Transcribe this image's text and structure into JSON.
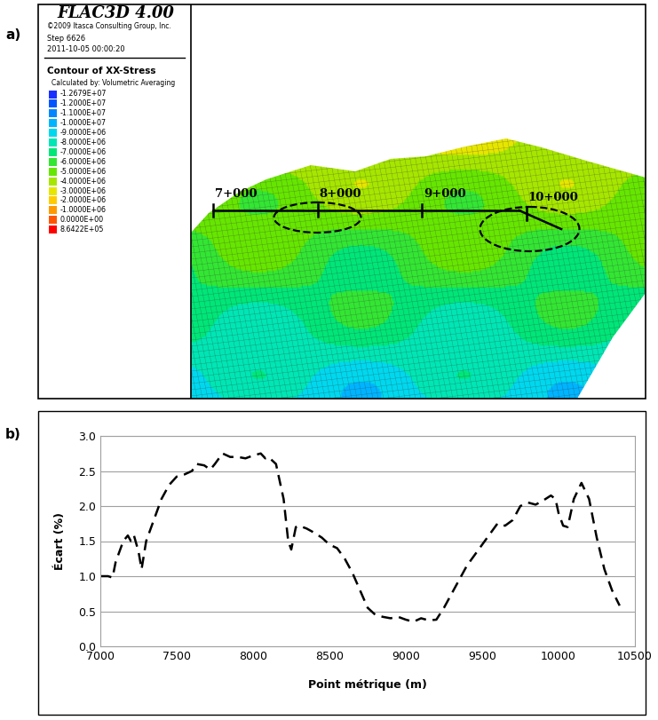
{
  "panel_labels": [
    "a)",
    "b)"
  ],
  "image_panel": {
    "header": {
      "title": "FLAC3D 4.00",
      "copyright": "©2009 Itasca Consulting Group, Inc.",
      "step": "Step 6626",
      "date": "2011-10-05 00:00:20"
    },
    "legend": {
      "title": "Contour of XX-Stress",
      "subtitle": "Calculated by: Volumetric Averaging",
      "levels": [
        {
          "value": -12679000,
          "label": "-1.2679E+07"
        },
        {
          "value": -12000000,
          "label": "-1.2000E+07"
        },
        {
          "value": -11000000,
          "label": "-1.1000E+07"
        },
        {
          "value": -10000000,
          "label": "-1.0000E+07"
        },
        {
          "value": -9000000,
          "label": "-9.0000E+06"
        },
        {
          "value": -8000000,
          "label": "-8.0000E+06"
        },
        {
          "value": -7000000,
          "label": "-7.0000E+06"
        },
        {
          "value": -6000000,
          "label": "-6.0000E+06"
        },
        {
          "value": -5000000,
          "label": "-5.0000E+06"
        },
        {
          "value": -4000000,
          "label": "-4.0000E+06"
        },
        {
          "value": -3000000,
          "label": "-3.0000E+06"
        },
        {
          "value": -2000000,
          "label": "-2.0000E+06"
        },
        {
          "value": -1000000,
          "label": "-1.0000E+06"
        },
        {
          "value": 0,
          "label": "0.0000E+00"
        },
        {
          "value": 864220,
          "label": "8.6422E+05"
        }
      ],
      "colors": [
        "#1a2fff",
        "#0055ff",
        "#0087ff",
        "#00b4ff",
        "#00d8ee",
        "#00e6b4",
        "#00e678",
        "#33e633",
        "#66e600",
        "#a6e600",
        "#e6e600",
        "#ffcc00",
        "#ff9900",
        "#ff5500",
        "#ff0000"
      ]
    },
    "stations": [
      {
        "value": 7000,
        "label": "7+000"
      },
      {
        "value": 8000,
        "label": "8+000"
      },
      {
        "value": 9000,
        "label": "9+000"
      },
      {
        "value": 10000,
        "label": "10+000"
      }
    ]
  },
  "chart_data": {
    "type": "line",
    "xlabel": "Point métrique (m)",
    "ylabel": "Écart (%)",
    "x": [
      7000,
      7050,
      7080,
      7100,
      7150,
      7180,
      7200,
      7220,
      7250,
      7270,
      7300,
      7350,
      7400,
      7450,
      7500,
      7550,
      7600,
      7630,
      7680,
      7720,
      7750,
      7800,
      7850,
      7900,
      7950,
      8000,
      8050,
      8080,
      8100,
      8150,
      8200,
      8230,
      8250,
      8280,
      8300,
      8350,
      8400,
      8450,
      8500,
      8550,
      8600,
      8650,
      8700,
      8750,
      8800,
      8850,
      8900,
      8950,
      9000,
      9050,
      9100,
      9150,
      9200,
      9250,
      9300,
      9350,
      9400,
      9450,
      9500,
      9550,
      9600,
      9650,
      9700,
      9750,
      9800,
      9850,
      9900,
      9950,
      9980,
      10000,
      10030,
      10060,
      10100,
      10150,
      10200,
      10250,
      10300,
      10350,
      10400
    ],
    "values": [
      1.0,
      1.0,
      0.98,
      1.2,
      1.5,
      1.58,
      1.5,
      1.58,
      1.35,
      1.1,
      1.5,
      1.8,
      2.1,
      2.3,
      2.42,
      2.45,
      2.5,
      2.6,
      2.58,
      2.52,
      2.6,
      2.75,
      2.7,
      2.7,
      2.68,
      2.72,
      2.75,
      2.68,
      2.7,
      2.6,
      2.1,
      1.5,
      1.38,
      1.7,
      1.72,
      1.68,
      1.62,
      1.55,
      1.45,
      1.4,
      1.25,
      1.05,
      0.8,
      0.55,
      0.45,
      0.42,
      0.4,
      0.42,
      0.38,
      0.35,
      0.4,
      0.37,
      0.38,
      0.55,
      0.75,
      0.95,
      1.15,
      1.3,
      1.45,
      1.6,
      1.75,
      1.72,
      1.8,
      2.0,
      2.05,
      2.02,
      2.08,
      2.15,
      2.1,
      1.9,
      1.72,
      1.7,
      2.1,
      2.33,
      2.1,
      1.55,
      1.1,
      0.8,
      0.58
    ],
    "color": "#000000",
    "line_style": "dashed",
    "marker": "none",
    "xlim": [
      7000,
      10500
    ],
    "xticks": [
      7000,
      7500,
      8000,
      8500,
      9000,
      9500,
      10000,
      10500
    ],
    "ylim": [
      0,
      3
    ],
    "yticks": [
      {
        "value": 0,
        "label": "0.0"
      },
      {
        "value": 0.5,
        "label": "0.5"
      },
      {
        "value": 1,
        "label": "1.0"
      },
      {
        "value": 1.5,
        "label": "1.5"
      },
      {
        "value": 2,
        "label": "2.0"
      },
      {
        "value": 2.5,
        "label": "2.5"
      },
      {
        "value": 3,
        "label": "3.0"
      }
    ],
    "grid": true
  }
}
